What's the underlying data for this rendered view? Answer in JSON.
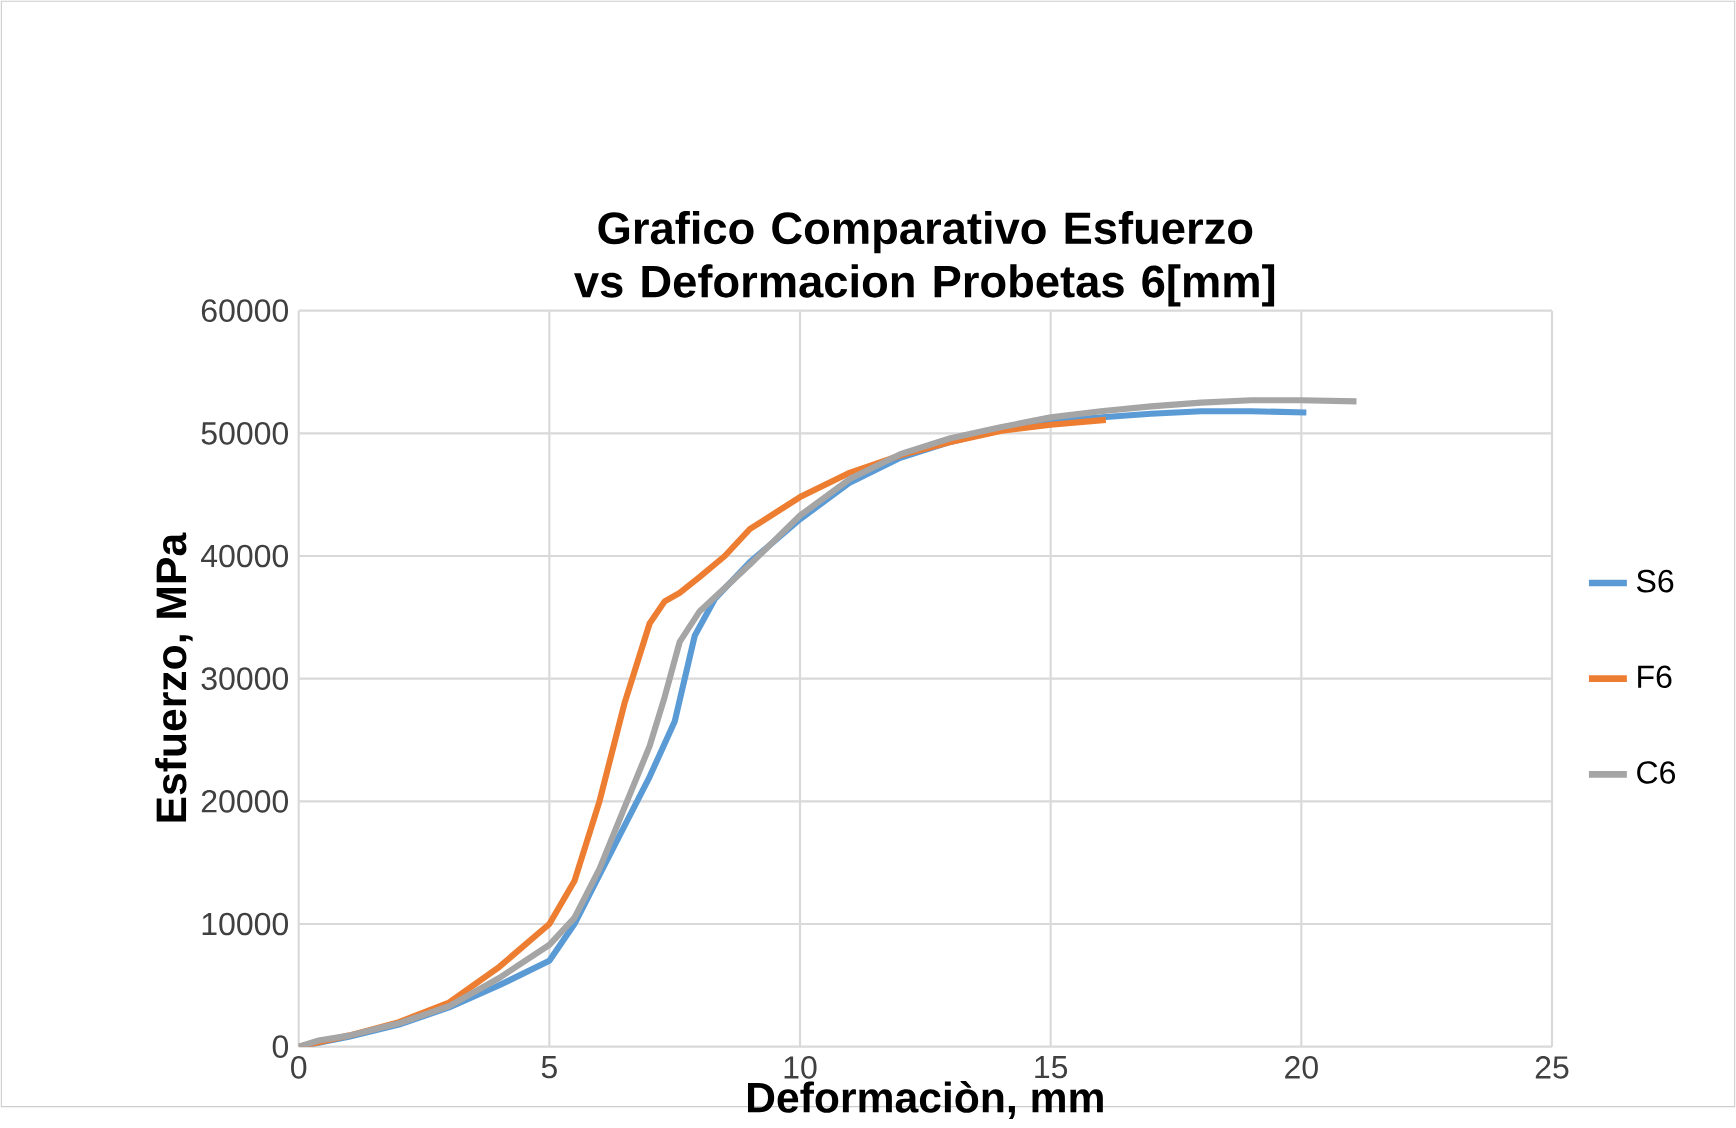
{
  "chart_data": {
    "type": "line",
    "title": "Grafico Comparativo Esfuerzo vs Deformacion Probetas 6[mm]",
    "xlabel": "Deformaciòn, mm",
    "ylabel": "Esfuerzo, MPa",
    "xlim": [
      0,
      25
    ],
    "xticks": [
      0,
      5,
      10,
      15,
      20,
      25
    ],
    "ylim": [
      0,
      60000
    ],
    "yticks": [
      0,
      10000,
      20000,
      30000,
      40000,
      50000,
      60000
    ],
    "grid": true,
    "legend": "right",
    "marker": "none",
    "line_style": "solid",
    "series": [
      {
        "name": "S6",
        "color": "#5b9bd5",
        "x": [
          0,
          1,
          2,
          3,
          4,
          5,
          5.5,
          6,
          6.5,
          7,
          7.5,
          7.7,
          7.9,
          8.3,
          9,
          10,
          11,
          12,
          13,
          14,
          15,
          16,
          17,
          18,
          19,
          20.1
        ],
        "values": [
          0,
          800,
          1800,
          3200,
          5000,
          7000,
          10000,
          14000,
          18000,
          22000,
          26500,
          30000,
          33500,
          36500,
          39500,
          43000,
          46000,
          48000,
          49300,
          50300,
          51000,
          51300,
          51600,
          51800,
          51800,
          51700
        ]
      },
      {
        "name": "F6",
        "color": "#ed7d31",
        "x": [
          0,
          1,
          2,
          3,
          4,
          5,
          5.5,
          6,
          6.5,
          7,
          7.3,
          7.6,
          8,
          8.5,
          9,
          10,
          11,
          12,
          13,
          14,
          15,
          16.1
        ],
        "values": [
          0,
          900,
          2000,
          3600,
          6500,
          10000,
          13500,
          20000,
          28000,
          34500,
          36300,
          37000,
          38300,
          40000,
          42200,
          44800,
          46800,
          48200,
          49300,
          50200,
          50700,
          51100
        ]
      },
      {
        "name": "C6",
        "color": "#a5a5a5",
        "x": [
          0,
          0.4,
          1,
          2,
          3,
          4,
          5,
          5.5,
          6,
          6.5,
          7,
          7.3,
          7.6,
          8,
          9,
          10,
          11,
          12,
          13,
          14,
          15,
          16,
          17,
          18,
          19,
          20,
          21.1
        ],
        "values": [
          0,
          500,
          900,
          1900,
          3300,
          5600,
          8300,
          10500,
          14500,
          19500,
          24500,
          28500,
          33000,
          35500,
          39300,
          43300,
          46300,
          48300,
          49600,
          50500,
          51300,
          51800,
          52200,
          52500,
          52700,
          52700,
          52600
        ]
      }
    ]
  }
}
